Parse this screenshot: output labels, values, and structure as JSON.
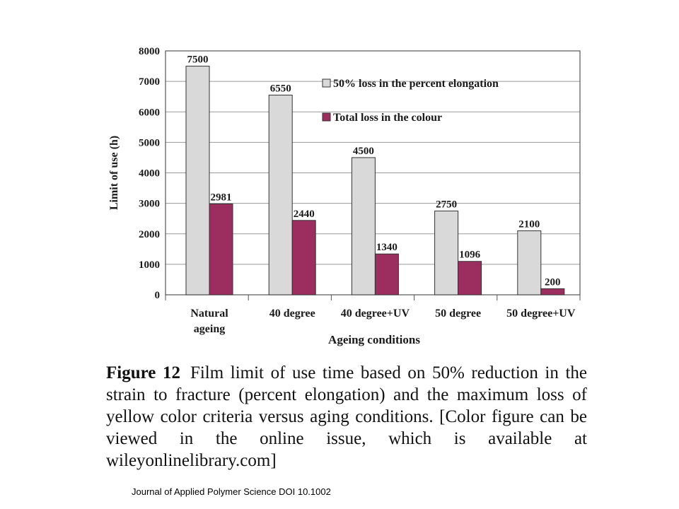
{
  "chart_data": {
    "type": "bar",
    "xlabel": "Ageing conditions",
    "ylabel": "Limit of use (h)",
    "ylim": [
      0,
      8000
    ],
    "yticks": [
      0,
      1000,
      2000,
      3000,
      4000,
      5000,
      6000,
      7000,
      8000
    ],
    "grid": true,
    "legend_position": "top-right",
    "categories": [
      [
        "Natural",
        "ageing"
      ],
      [
        "40 degree"
      ],
      [
        "40 degree+UV"
      ],
      [
        "50 degree"
      ],
      [
        "50 degree+UV"
      ]
    ],
    "series": [
      {
        "name": "50% loss in the percent elongation",
        "color": "#d9d9d9",
        "values": [
          7500,
          6550,
          4500,
          2750,
          2100
        ]
      },
      {
        "name": "Total loss in the colour",
        "color": "#9b2d5f",
        "values": [
          2981,
          2440,
          1340,
          1096,
          200
        ]
      }
    ]
  },
  "caption": {
    "label": "Figure 12",
    "text": "Film limit of use time based on 50% reduction in the strain to fracture (percent elongation) and the maximum loss of yellow color criteria versus aging conditions. [Color figure can be viewed in the online issue, which is available at wileyonlinelibrary.com]"
  },
  "source": "Journal of Applied Polymer Science DOI 10.1002"
}
